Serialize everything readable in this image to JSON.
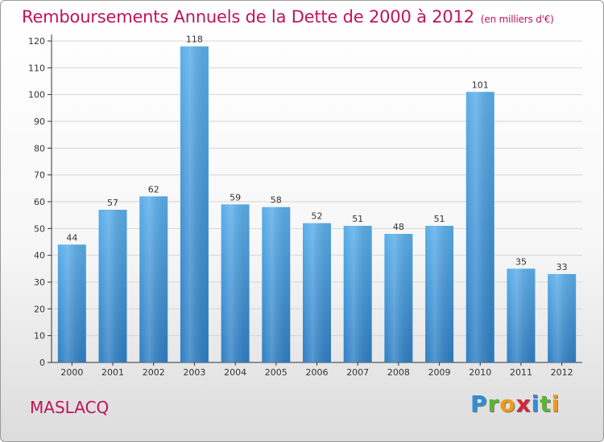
{
  "title": "Remboursements Annuels de la Dette de 2000 à 2012",
  "unit_note": "(en milliers d'€)",
  "commune": "MASLACQ",
  "brand": {
    "letters": [
      {
        "ch": "P",
        "color": "#2f8fd6"
      },
      {
        "ch": "r",
        "color": "#5cb531"
      },
      {
        "ch": "o",
        "color": "#f09a1a"
      },
      {
        "ch": "x",
        "color": "#d3253b"
      },
      {
        "ch": "i",
        "color": "#2f8fd6"
      },
      {
        "ch": "t",
        "color": "#5cb531"
      },
      {
        "ch": "i",
        "color": "#f09a1a"
      }
    ]
  },
  "colors": {
    "title": "#c0145a",
    "bar_top": "#5aaeea",
    "bar_bottom": "#2f7fc4",
    "grid": "#d6d6d6"
  },
  "chart_data": {
    "type": "bar",
    "categories": [
      "2000",
      "2001",
      "2002",
      "2003",
      "2004",
      "2005",
      "2006",
      "2007",
      "2008",
      "2009",
      "2010",
      "2011",
      "2012"
    ],
    "values": [
      44,
      57,
      62,
      118,
      59,
      58,
      52,
      51,
      48,
      51,
      101,
      35,
      33
    ],
    "ylim": [
      0,
      120
    ],
    "yticks": [
      0,
      10,
      20,
      30,
      40,
      50,
      60,
      70,
      80,
      90,
      100,
      110,
      120
    ],
    "grid": true,
    "data_labels": true
  }
}
